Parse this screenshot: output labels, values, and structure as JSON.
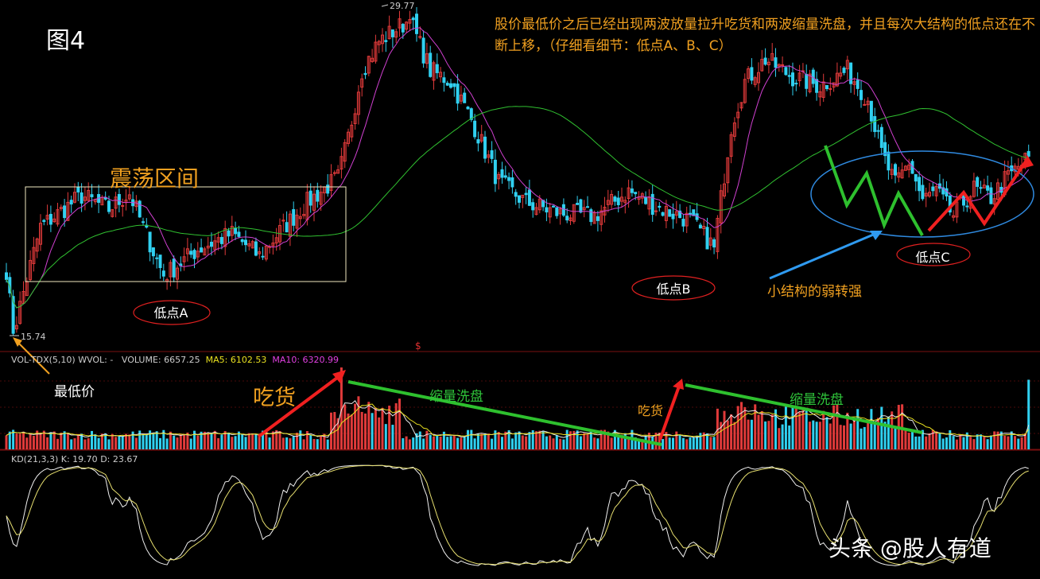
{
  "figure_label": "图4",
  "note": "股价最低价之后已经出现两波放量拉升吃货和两波缩量洗盘，并且每次大结构的低点还在不断上移，（仔细看细节：低点A、B、C）",
  "annotations": {
    "range": "震荡区间",
    "low_a": "低点A",
    "low_b": "低点B",
    "low_c": "低点C",
    "weak_to_strong": "小结构的弱转强",
    "lowest_price": "最低价",
    "buy1": "吃货",
    "buy2": "吃货",
    "wash1": "缩量洗盘",
    "wash2": "缩量洗盘",
    "marker": "$"
  },
  "watermark": "头条 @股人有道",
  "chart_data": [
    {
      "type": "candlestick",
      "panel": "price",
      "price_labels": {
        "high": "29.77",
        "low": "15.74"
      },
      "ylim": [
        15.0,
        30.5
      ],
      "colors": {
        "up": "#e03a3a",
        "down": "#30d0f0",
        "ma_short": "#d040d0",
        "ma_long": "#30c030"
      },
      "key_points": [
        {
          "bar": 2,
          "value": 15.74,
          "label": "最低价"
        },
        {
          "bar": 46,
          "value": 18.3,
          "label": "低点A"
        },
        {
          "bar": 118,
          "value": 29.77,
          "label": ""
        },
        {
          "bar": 207,
          "value": 19.6,
          "label": "低点B"
        },
        {
          "bar": 277,
          "value": 21.0,
          "label": "低点C"
        }
      ]
    },
    {
      "type": "bar",
      "panel": "volume",
      "title": "VOL-TDX(5,10)",
      "header": {
        "wvol": "WVOL: -",
        "volume": "VOLUME: 6657.25",
        "ma5": "MA5: 6102.53",
        "ma10": "MA10: 6320.99"
      }
    },
    {
      "type": "line",
      "panel": "kd",
      "title": "KD(21,3,3)",
      "header": {
        "k": "K: 19.70",
        "d": "D: 23.67"
      },
      "ylim": [
        0,
        100
      ]
    }
  ]
}
